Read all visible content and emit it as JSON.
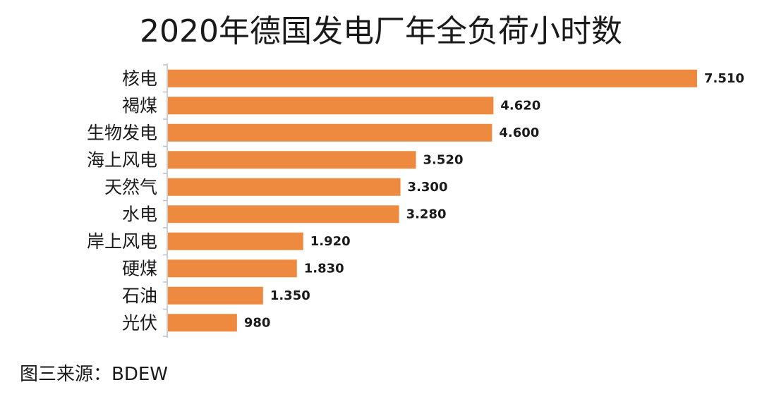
{
  "chart_data": {
    "type": "bar",
    "orientation": "horizontal",
    "title": "2020年德国发电厂年全负荷小时数",
    "source": "图三来源：BDEW",
    "categories": [
      "核电",
      "褐煤",
      "生物发电",
      "海上风电",
      "天然气",
      "水电",
      "岸上风电",
      "硬煤",
      "石油",
      "光伏"
    ],
    "values": [
      7510,
      4620,
      4600,
      3520,
      3300,
      3280,
      1920,
      1830,
      1350,
      980
    ],
    "value_labels": [
      "7.510",
      "4.620",
      "4.600",
      "3.520",
      "3.300",
      "3.280",
      "1.920",
      "1.830",
      "1.350",
      "980"
    ],
    "xlabel": "",
    "ylabel": "",
    "xlim": [
      0,
      7510
    ],
    "grid": false,
    "legend": "none",
    "bar_color": "#ED8A3F",
    "axis_color": "#BFBFBF"
  }
}
